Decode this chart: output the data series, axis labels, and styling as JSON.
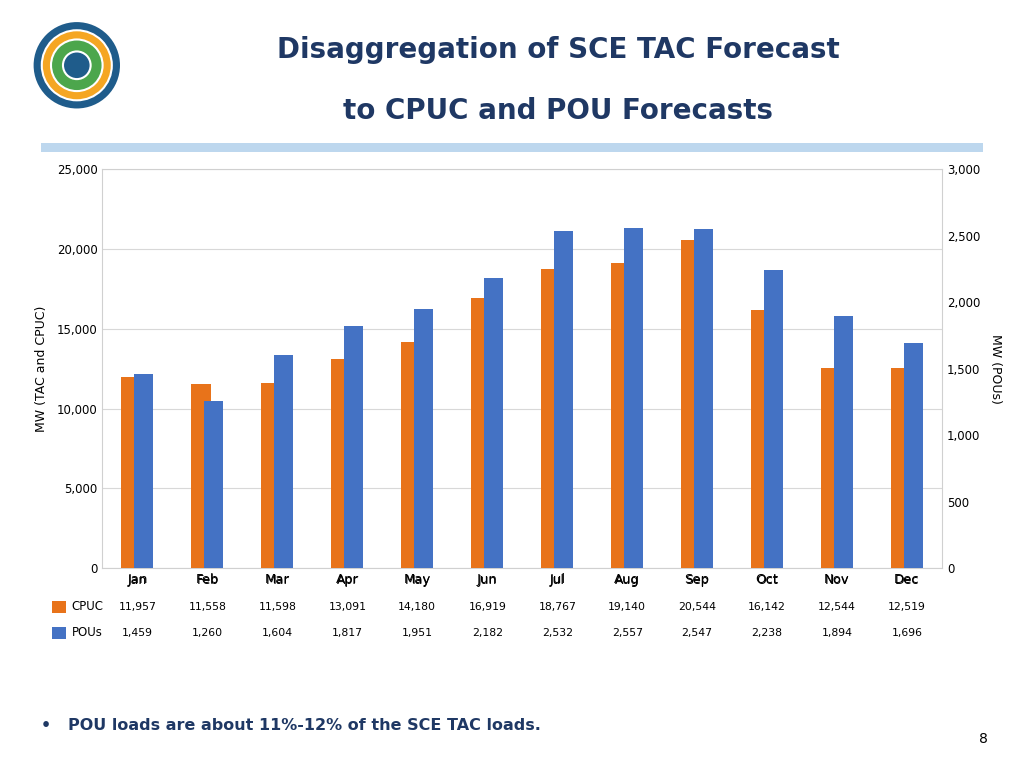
{
  "title_line1": "Disaggregation of SCE TAC Forecast",
  "title_line2": "to CPUC and POU Forecasts",
  "months": [
    "Jan",
    "Feb",
    "Mar",
    "Apr",
    "May",
    "Jun",
    "Jul",
    "Aug",
    "Sep",
    "Oct",
    "Nov",
    "Dec"
  ],
  "cpuc": [
    11957,
    11558,
    11598,
    13091,
    14180,
    16919,
    18767,
    19140,
    20544,
    16142,
    12544,
    12519
  ],
  "pous": [
    1459,
    1260,
    1604,
    1817,
    1951,
    2182,
    2532,
    2557,
    2547,
    2238,
    1894,
    1696
  ],
  "cpuc_color": "#E8731A",
  "pous_color": "#4472C4",
  "ylabel_left": "MW (TAC and CPUC)",
  "ylabel_right": "MW (POUs)",
  "ylim_left": [
    0,
    25000
  ],
  "ylim_right": [
    0,
    3000
  ],
  "yticks_left": [
    0,
    5000,
    10000,
    15000,
    20000,
    25000
  ],
  "yticks_right": [
    0,
    500,
    1000,
    1500,
    2000,
    2500,
    3000
  ],
  "background_color": "#FFFFFF",
  "plot_bg_color": "#FFFFFF",
  "note": "POU loads are about 11%-12% of the SCE TAC loads.",
  "bar_width": 0.28,
  "title_color": "#1F3864",
  "note_color": "#1F3864",
  "divider_color": "#BDD7EE",
  "page_number": "8",
  "chart_border_color": "#D0D0D0"
}
